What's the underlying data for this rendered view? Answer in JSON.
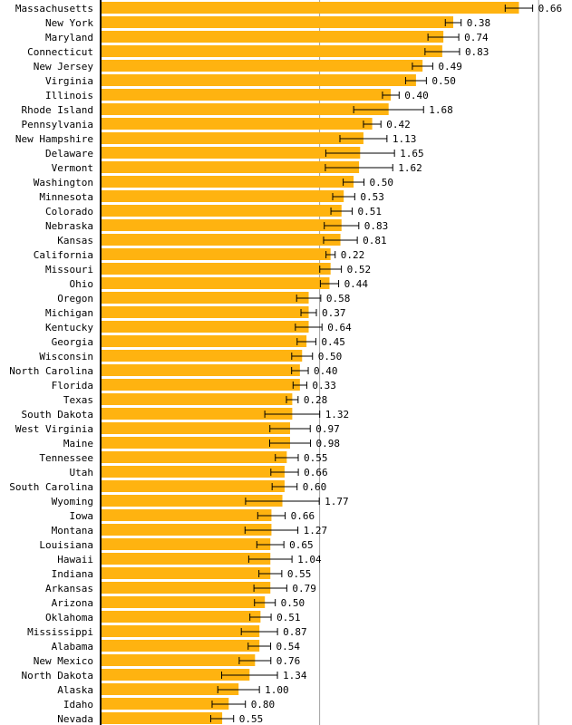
{
  "chart_data": {
    "type": "bar",
    "orientation": "horizontal",
    "bar_color": "#FFB310",
    "error_bar_color": "#000000",
    "gridline_color": "#A0A0A0",
    "grid": true,
    "xlim": [
      0,
      48
    ],
    "xlabel": "",
    "ylabel": "",
    "title": "",
    "categories": [
      "Massachusetts",
      "New York",
      "Maryland",
      "Connecticut",
      "New Jersey",
      "Virginia",
      "Illinois",
      "Rhode Island",
      "Pennsylvania",
      "New Hampshire",
      "Delaware",
      "Vermont",
      "Washington",
      "Minnesota",
      "Colorado",
      "Nebraska",
      "Kansas",
      "California",
      "Missouri",
      "Ohio",
      "Oregon",
      "Michigan",
      "Kentucky",
      "Georgia",
      "Wisconsin",
      "North Carolina",
      "Florida",
      "Texas",
      "South Dakota",
      "West Virginia",
      "Maine",
      "Tennessee",
      "Utah",
      "South Carolina",
      "Wyoming",
      "Iowa",
      "Montana",
      "Louisiana",
      "Hawaii",
      "Indiana",
      "Arkansas",
      "Arizona",
      "Oklahoma",
      "Mississippi",
      "Alabama",
      "New Mexico",
      "North Dakota",
      "Alaska",
      "Idaho",
      "Nevada"
    ],
    "values": [
      38.2,
      32.2,
      31.3,
      31.2,
      29.4,
      28.8,
      26.5,
      26.3,
      24.8,
      24.0,
      23.7,
      23.6,
      23.1,
      22.2,
      22.0,
      22.0,
      21.9,
      21.0,
      21.0,
      20.9,
      19.0,
      19.0,
      19.0,
      18.8,
      18.4,
      18.2,
      18.2,
      17.5,
      17.5,
      17.3,
      17.3,
      17.0,
      16.8,
      16.8,
      16.6,
      15.6,
      15.6,
      15.5,
      15.5,
      15.5,
      15.5,
      15.0,
      14.6,
      14.5,
      14.5,
      14.1,
      13.6,
      12.6,
      11.7,
      11.1
    ],
    "errors": [
      "0.66",
      "0.38",
      "0.74",
      "0.83",
      "0.49",
      "0.50",
      "0.40",
      "1.68",
      "0.42",
      "1.13",
      "1.65",
      "1.62",
      "0.50",
      "0.53",
      "0.51",
      "0.83",
      "0.81",
      "0.22",
      "0.52",
      "0.44",
      "0.58",
      "0.37",
      "0.64",
      "0.45",
      "0.50",
      "0.40",
      "0.33",
      "0.28",
      "1.32",
      "0.97",
      "0.98",
      "0.55",
      "0.66",
      "0.60",
      "1.77",
      "0.66",
      "1.27",
      "0.65",
      "1.04",
      "0.55",
      "0.79",
      "0.50",
      "0.51",
      "0.87",
      "0.54",
      "0.76",
      "1.34",
      "1.00",
      "0.80",
      "0.55"
    ],
    "gridlines": [
      20,
      40
    ]
  }
}
